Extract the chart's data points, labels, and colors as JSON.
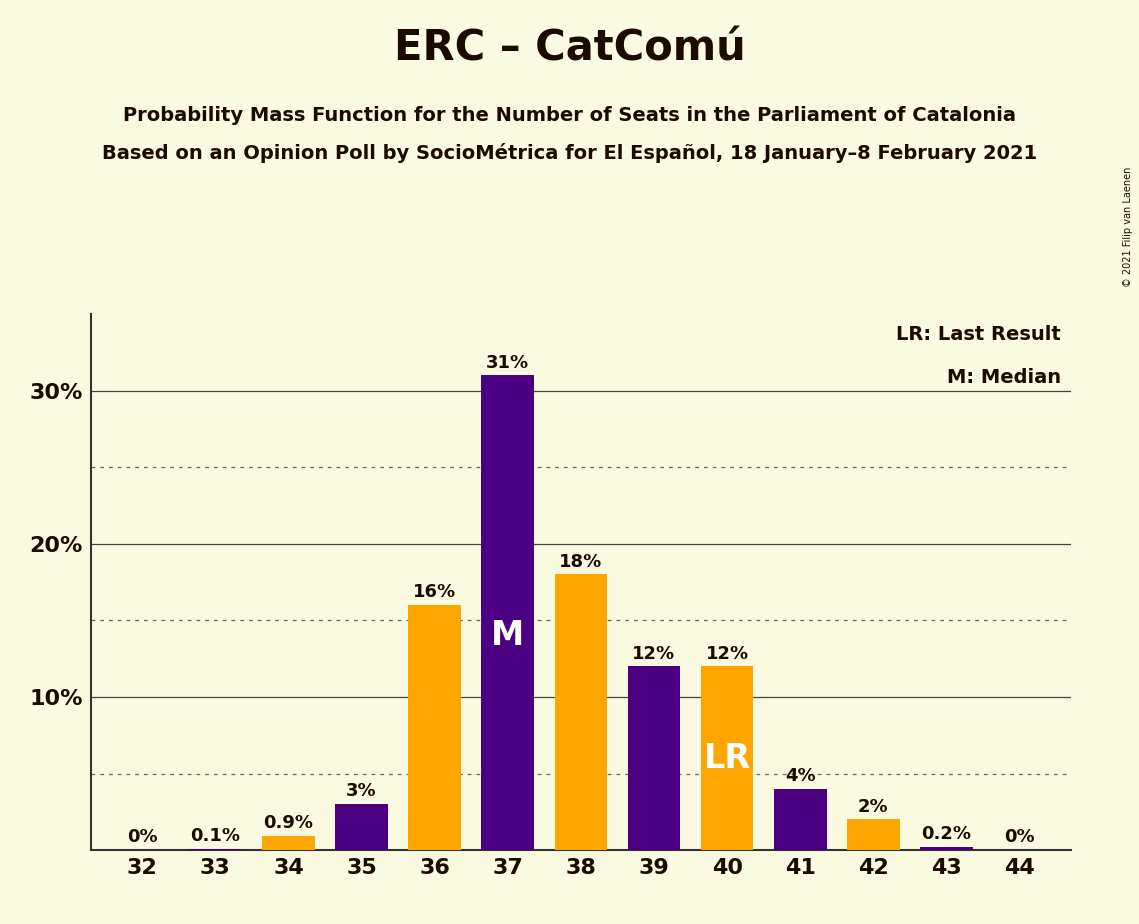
{
  "title": "ERC – CatComú",
  "subtitle1": "Probability Mass Function for the Number of Seats in the Parliament of Catalonia",
  "subtitle2": "Based on an Opinion Poll by SocioMétrica for El Español, 18 January–8 February 2021",
  "copyright": "© 2021 Filip van Laenen",
  "seats": [
    32,
    33,
    34,
    35,
    36,
    37,
    38,
    39,
    40,
    41,
    42,
    43,
    44
  ],
  "probabilities": [
    0.0,
    0.1,
    0.9,
    3.0,
    16.0,
    31.0,
    18.0,
    12.0,
    12.0,
    4.0,
    2.0,
    0.2,
    0.0
  ],
  "labels": [
    "0%",
    "0.1%",
    "0.9%",
    "3%",
    "16%",
    "31%",
    "18%",
    "12%",
    "12%",
    "4%",
    "2%",
    "0.2%",
    "0%"
  ],
  "bar_colors": [
    "#4B0082",
    "#4B0082",
    "#FFA500",
    "#4B0082",
    "#FFA500",
    "#4B0082",
    "#FFA500",
    "#4B0082",
    "#FFA500",
    "#4B0082",
    "#FFA500",
    "#4B0082",
    "#4B0082"
  ],
  "median_seat": 37,
  "last_result_seat": 40,
  "purple_color": "#4B0082",
  "orange_color": "#FFA500",
  "background_color": "#FAFAE0",
  "text_color": "#1a0a00",
  "legend_lr": "LR: Last Result",
  "legend_m": "M: Median",
  "ylim": [
    0,
    35
  ],
  "solid_ticks": [
    10,
    20,
    30
  ],
  "dotted_ticks": [
    5,
    15,
    25
  ]
}
